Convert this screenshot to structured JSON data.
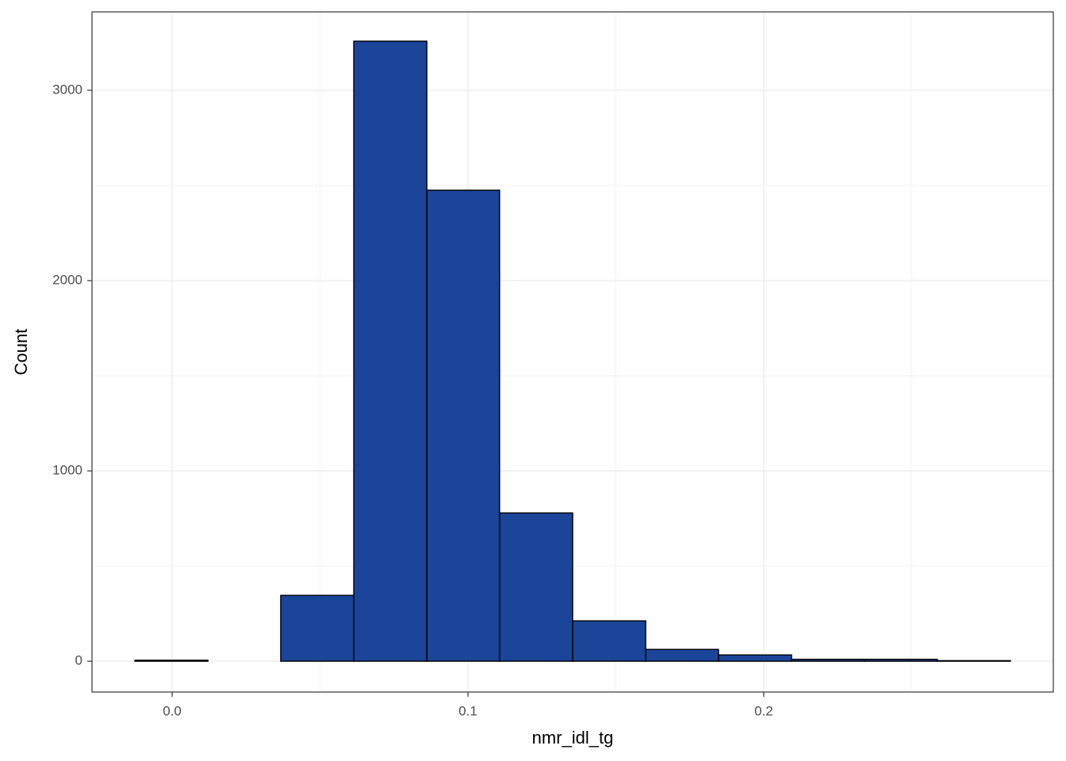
{
  "chart_data": {
    "type": "histogram",
    "xlabel": "nmr_idl_tg",
    "ylabel": "Count",
    "bins": [
      -0.0126,
      0.0121,
      0.0367,
      0.0614,
      0.0861,
      0.1107,
      0.1354,
      0.1601,
      0.1847,
      0.2094,
      0.234,
      0.2587,
      0.2834
    ],
    "counts": [
      5,
      0,
      346,
      3258,
      2475,
      779,
      212,
      62,
      33,
      10,
      10,
      3
    ],
    "color": "#1a4599",
    "edgecolor": "#000000",
    "xlim": [
      -0.0271,
      0.2979
    ],
    "ylim": [
      -162,
      3412
    ],
    "xticks": [
      {
        "value": 0,
        "label": "0.0"
      },
      0.1,
      0.2
    ],
    "yticks": [
      0,
      1000,
      2000,
      3000
    ],
    "xminorticks": [
      0.05,
      0.15,
      0.25
    ],
    "yminorticks": [
      500,
      1500,
      2500
    ],
    "grid": true
  }
}
